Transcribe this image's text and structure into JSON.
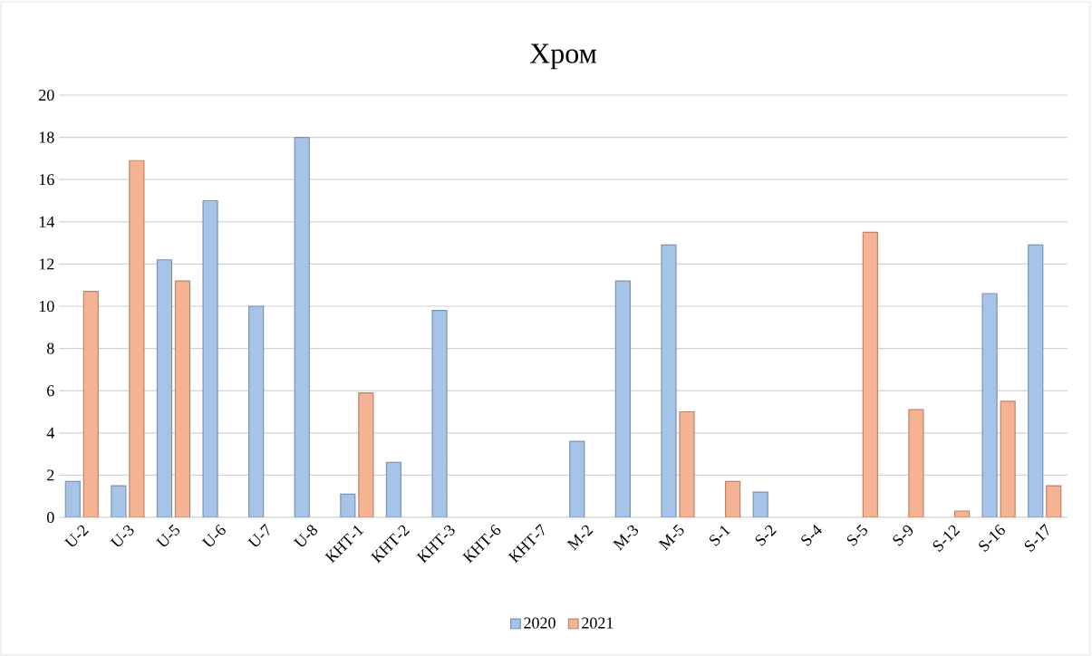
{
  "chart_data": {
    "type": "bar",
    "title": "Хром",
    "categories": [
      "U-2",
      "U-3",
      "U-5",
      "U-6",
      "U-7",
      "U-8",
      "КНТ-1",
      "КНТ-2",
      "КНТ-3",
      "КНТ-6",
      "КНТ-7",
      "M-2",
      "M-3",
      "M-5",
      "S-1",
      "S-2",
      "S-4",
      "S-5",
      "S-9",
      "S-12",
      "S-16",
      "S-17"
    ],
    "series": [
      {
        "name": "2020",
        "color": "#a6c4e8",
        "values": [
          1.7,
          1.5,
          12.2,
          15.0,
          10.0,
          18.0,
          1.1,
          2.6,
          9.8,
          null,
          null,
          3.6,
          11.2,
          12.9,
          null,
          1.2,
          null,
          null,
          null,
          null,
          10.6,
          12.9
        ]
      },
      {
        "name": "2021",
        "color": "#f5b393",
        "values": [
          10.7,
          16.9,
          11.2,
          null,
          null,
          null,
          5.9,
          null,
          null,
          null,
          null,
          null,
          null,
          5.0,
          1.7,
          null,
          null,
          13.5,
          5.1,
          0.3,
          5.5,
          1.5
        ]
      }
    ],
    "ylim": [
      0,
      20
    ],
    "yticks": [
      0,
      2,
      4,
      6,
      8,
      10,
      12,
      14,
      16,
      18,
      20
    ],
    "grid": "y",
    "legend": "bottom"
  }
}
